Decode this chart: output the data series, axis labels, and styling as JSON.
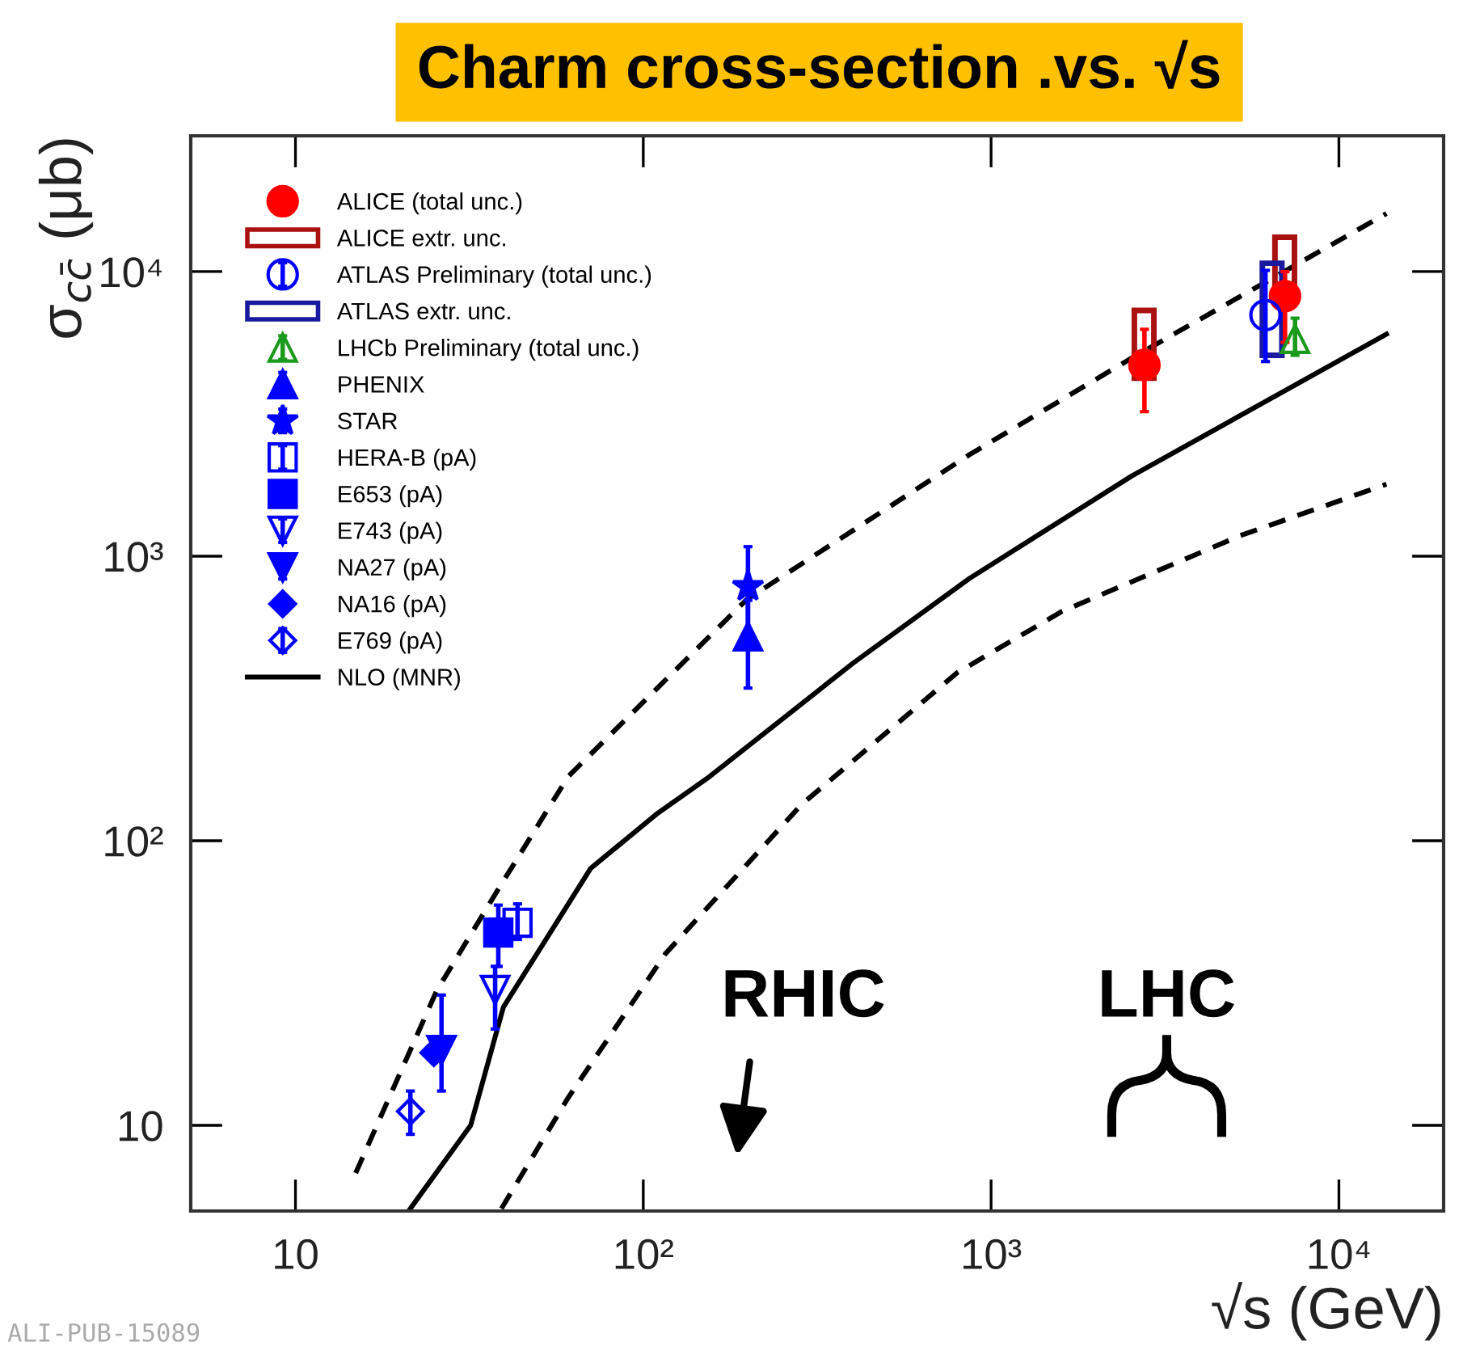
{
  "chart_data": {
    "type": "scatter",
    "title": "Charm cross-section .vs. √s",
    "xlabel": "√s (GeV)",
    "ylabel": "σ$_{cc̄}$ (μb)",
    "log": "xy",
    "xlim": [
      5,
      20000
    ],
    "ylim": [
      5,
      30000
    ],
    "xticks": [
      10,
      {
        "value": 100,
        "label": "10²"
      },
      {
        "value": 1000,
        "label": "10³"
      },
      {
        "value": 10000,
        "label": "10⁴"
      }
    ],
    "yticks": [
      10,
      {
        "value": 100,
        "label": "10²"
      },
      {
        "value": 1000,
        "label": "10³"
      },
      {
        "value": 10000,
        "label": "10⁴"
      }
    ],
    "grid": false,
    "legend": "top left",
    "series": [
      {
        "name": "ALICE (total unc.)",
        "marker": "circle",
        "color": "#ff0000",
        "x": [
          2760,
          7000
        ],
        "values": [
          4700,
          8200
        ],
        "errors": [
          [
            3220,
            6270
          ],
          [
            5640,
            10000
          ]
        ]
      },
      {
        "name": "ALICE extr. unc.",
        "type": "bar",
        "color": "#aa1111",
        "x": [
          2760,
          7000
        ],
        "base": [
          4220,
          7900
        ],
        "values": [
          3080,
          5300
        ]
      },
      {
        "name": "ATLAS Preliminary (total unc.)",
        "marker": "circle-open",
        "color": "#0000ff",
        "x": [
          6150
        ],
        "values": [
          7030
        ],
        "errors": [
          [
            4830,
            10100
          ]
        ]
      },
      {
        "name": "ATLAS extr. unc.",
        "type": "bar",
        "color": "#1a1aa0",
        "x": [
          6440
        ],
        "base": [
          5080
        ],
        "values": [
          5620
        ]
      },
      {
        "name": "LHCb Preliminary (total unc.)",
        "marker": "triangle-open",
        "color": "#1a9a1a",
        "x": [
          7480
        ],
        "values": [
          5800
        ],
        "errors": [
          [
            5080,
            6860
          ]
        ]
      },
      {
        "name": "PHENIX",
        "marker": "triangle",
        "color": "#0000ff",
        "x": [
          200
        ],
        "values": [
          522
        ],
        "errors": [
          [
            344,
            700
          ]
        ]
      },
      {
        "name": "STAR",
        "marker": "star",
        "color": "#0000ff",
        "x": [
          200
        ],
        "values": [
          782
        ],
        "errors": [
          [
            540,
            1080
          ]
        ]
      },
      {
        "name": "HERA-B (pA)",
        "marker": "square-open",
        "color": "#0000ff",
        "x": [
          43.5
        ],
        "values": [
          51.5
        ],
        "errors": [
          [
            45,
            60
          ]
        ]
      },
      {
        "name": "E653 (pA)",
        "marker": "square",
        "color": "#0000ff",
        "x": [
          38.3
        ],
        "values": [
          47.6
        ],
        "errors": [
          [
            36.2,
            59.4
          ]
        ]
      },
      {
        "name": "E743 (pA)",
        "marker": "triangle-down-open",
        "color": "#0000ff",
        "x": [
          37.5
        ],
        "values": [
          29.9
        ],
        "errors": [
          [
            21.8,
            36.2
          ]
        ]
      },
      {
        "name": "NA27 (pA)",
        "marker": "triangle-down",
        "color": "#0000ff",
        "x": [
          26.3
        ],
        "values": [
          18.4
        ],
        "errors": [
          [
            13.2,
            28.7
          ]
        ]
      },
      {
        "name": "NA16 (pA)",
        "marker": "diamond",
        "color": "#0000ff",
        "x": [
          25.0
        ],
        "values": [
          18
        ]
      },
      {
        "name": "E769 (pA)",
        "marker": "diamond-open",
        "color": "#0000ff",
        "x": [
          21.4
        ],
        "values": [
          11.2
        ],
        "errors": [
          [
            9.3,
            13.2
          ]
        ]
      },
      {
        "name": "NLO (MNR)",
        "type": "line",
        "line_style": "solid",
        "color": "#000000",
        "x": [
          21.4,
          31.9,
          39.6,
          70.6,
          110,
          155,
          400,
          865,
          2530,
          13700
        ],
        "values": [
          5.1,
          10,
          26,
          80,
          125,
          168,
          420,
          834,
          1910,
          6030
        ]
      },
      {
        "type": "line",
        "line_style": "dashed",
        "color": "#000000",
        "x": [
          14.9,
          25.5,
          38.3,
          60.8,
          198,
          865,
          2530,
          13700
        ],
        "values": [
          6.8,
          29.8,
          67.6,
          168,
          703,
          2270,
          4960,
          16000
        ]
      },
      {
        "type": "line",
        "line_style": "dashed",
        "color": "#000000",
        "x": [
          39.1,
          60.8,
          116,
          285,
          800,
          1600,
          5200,
          13700
        ],
        "values": [
          5.1,
          12.5,
          40.2,
          134,
          390,
          640,
          1180,
          1790
        ]
      }
    ],
    "annotations": [
      "RHIC",
      "LHC",
      "ALI-PUB-15089"
    ]
  }
}
